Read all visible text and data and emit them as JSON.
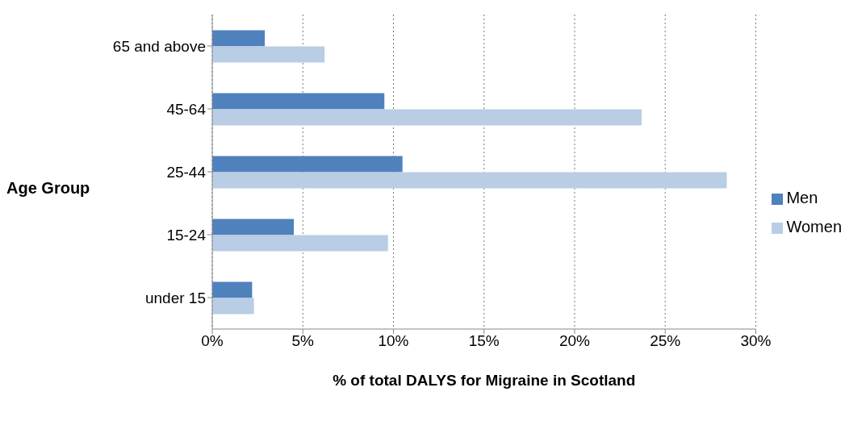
{
  "chart_data": {
    "type": "bar",
    "orientation": "horizontal",
    "xlabel": "% of total DALYS for Migraine in Scotland",
    "ylabel": "Age Group",
    "categories": [
      "65 and above",
      "45-64",
      "25-44",
      "15-24",
      "under 15"
    ],
    "series": [
      {
        "name": "Men",
        "color": "#4f81bd",
        "values": [
          2.9,
          9.5,
          10.5,
          4.5,
          2.2
        ]
      },
      {
        "name": "Women",
        "color": "#b9cde5",
        "values": [
          6.2,
          23.7,
          28.4,
          9.7,
          2.3
        ]
      }
    ],
    "xlim": [
      0,
      30
    ],
    "xticks": [
      {
        "value": 0,
        "label": "0%"
      },
      {
        "value": 5,
        "label": "5%"
      },
      {
        "value": 10,
        "label": "10%"
      },
      {
        "value": 15,
        "label": "15%"
      },
      {
        "value": 20,
        "label": "20%"
      },
      {
        "value": 25,
        "label": "25%"
      },
      {
        "value": 30,
        "label": "30%"
      }
    ],
    "grid": "x",
    "legend": "right"
  }
}
